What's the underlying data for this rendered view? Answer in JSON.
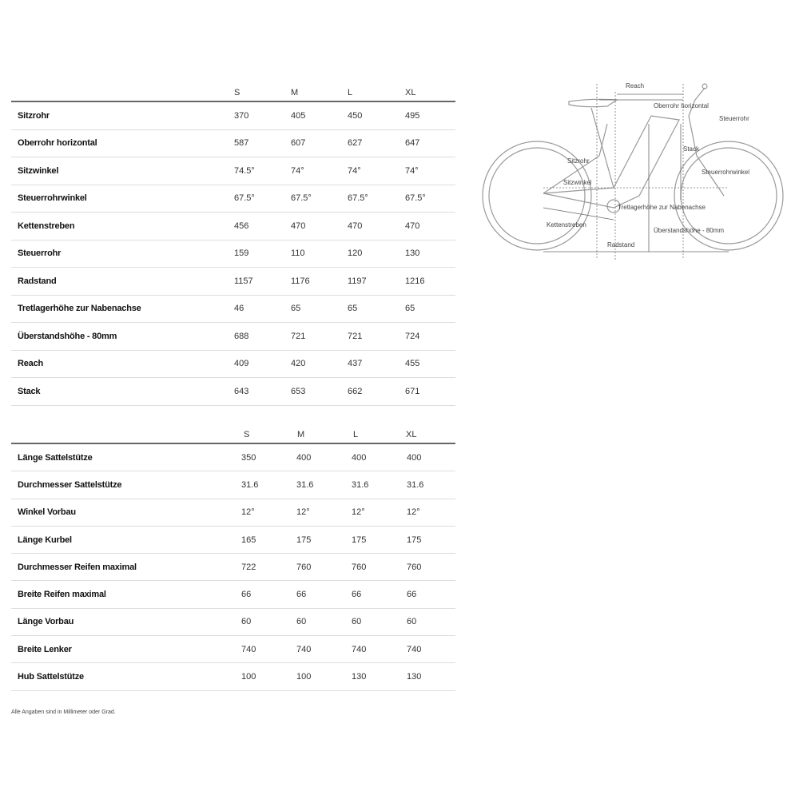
{
  "sizes": [
    "S",
    "M",
    "L",
    "XL"
  ],
  "geometry": {
    "rows": [
      {
        "label": "Sitzrohr",
        "values": [
          "370",
          "405",
          "450",
          "495"
        ]
      },
      {
        "label": "Oberrohr horizontal",
        "values": [
          "587",
          "607",
          "627",
          "647"
        ]
      },
      {
        "label": "Sitzwinkel",
        "values": [
          "74.5°",
          "74°",
          "74°",
          "74°"
        ]
      },
      {
        "label": "Steuerrohrwinkel",
        "values": [
          "67.5°",
          "67.5°",
          "67.5°",
          "67.5°"
        ]
      },
      {
        "label": "Kettenstreben",
        "values": [
          "456",
          "470",
          "470",
          "470"
        ]
      },
      {
        "label": "Steuerrohr",
        "values": [
          "159",
          "110",
          "120",
          "130"
        ]
      },
      {
        "label": "Radstand",
        "values": [
          "1157",
          "1176",
          "1197",
          "1216"
        ]
      },
      {
        "label": "Tretlagerhöhe zur Nabenachse",
        "values": [
          "46",
          "65",
          "65",
          "65"
        ]
      },
      {
        "label": "Überstandshöhe - 80mm",
        "values": [
          "688",
          "721",
          "721",
          "724"
        ]
      },
      {
        "label": "Reach",
        "values": [
          "409",
          "420",
          "437",
          "455"
        ]
      },
      {
        "label": "Stack",
        "values": [
          "643",
          "653",
          "662",
          "671"
        ]
      }
    ]
  },
  "components": {
    "rows": [
      {
        "label": "Länge Sattelstütze",
        "values": [
          "350",
          "400",
          "400",
          "400"
        ]
      },
      {
        "label": "Durchmesser Sattelstütze",
        "values": [
          "31.6",
          "31.6",
          "31.6",
          "31.6"
        ]
      },
      {
        "label": "Winkel Vorbau",
        "values": [
          "12°",
          "12°",
          "12°",
          "12°"
        ]
      },
      {
        "label": "Länge Kurbel",
        "values": [
          "165",
          "175",
          "175",
          "175"
        ]
      },
      {
        "label": "Durchmesser Reifen maximal",
        "values": [
          "722",
          "760",
          "760",
          "760"
        ]
      },
      {
        "label": "Breite Reifen maximal",
        "values": [
          "66",
          "66",
          "66",
          "66"
        ]
      },
      {
        "label": "Länge Vorbau",
        "values": [
          "60",
          "60",
          "60",
          "60"
        ]
      },
      {
        "label": "Breite Lenker",
        "values": [
          "740",
          "740",
          "740",
          "740"
        ]
      },
      {
        "label": "Hub Sattelstütze",
        "values": [
          "100",
          "100",
          "130",
          "130"
        ]
      }
    ]
  },
  "footnote": "Alle Angaben sind in Millimeter oder Grad.",
  "diagram": {
    "labels": {
      "reach": "Reach",
      "top_tube": "Oberrohr horizontal",
      "head_tube": "Steuerrohr",
      "stack": "Stack",
      "seat_tube": "Sitzrohr",
      "head_angle": "Steuerrohrwinkel",
      "seat_angle": "Sitzwinkel",
      "bb_drop": "Tretlagerhöhe zur Nabenachse",
      "chainstay": "Kettenstreben",
      "standover": "Überstandshöhe - 80mm",
      "wheelbase": "Radstand"
    }
  }
}
